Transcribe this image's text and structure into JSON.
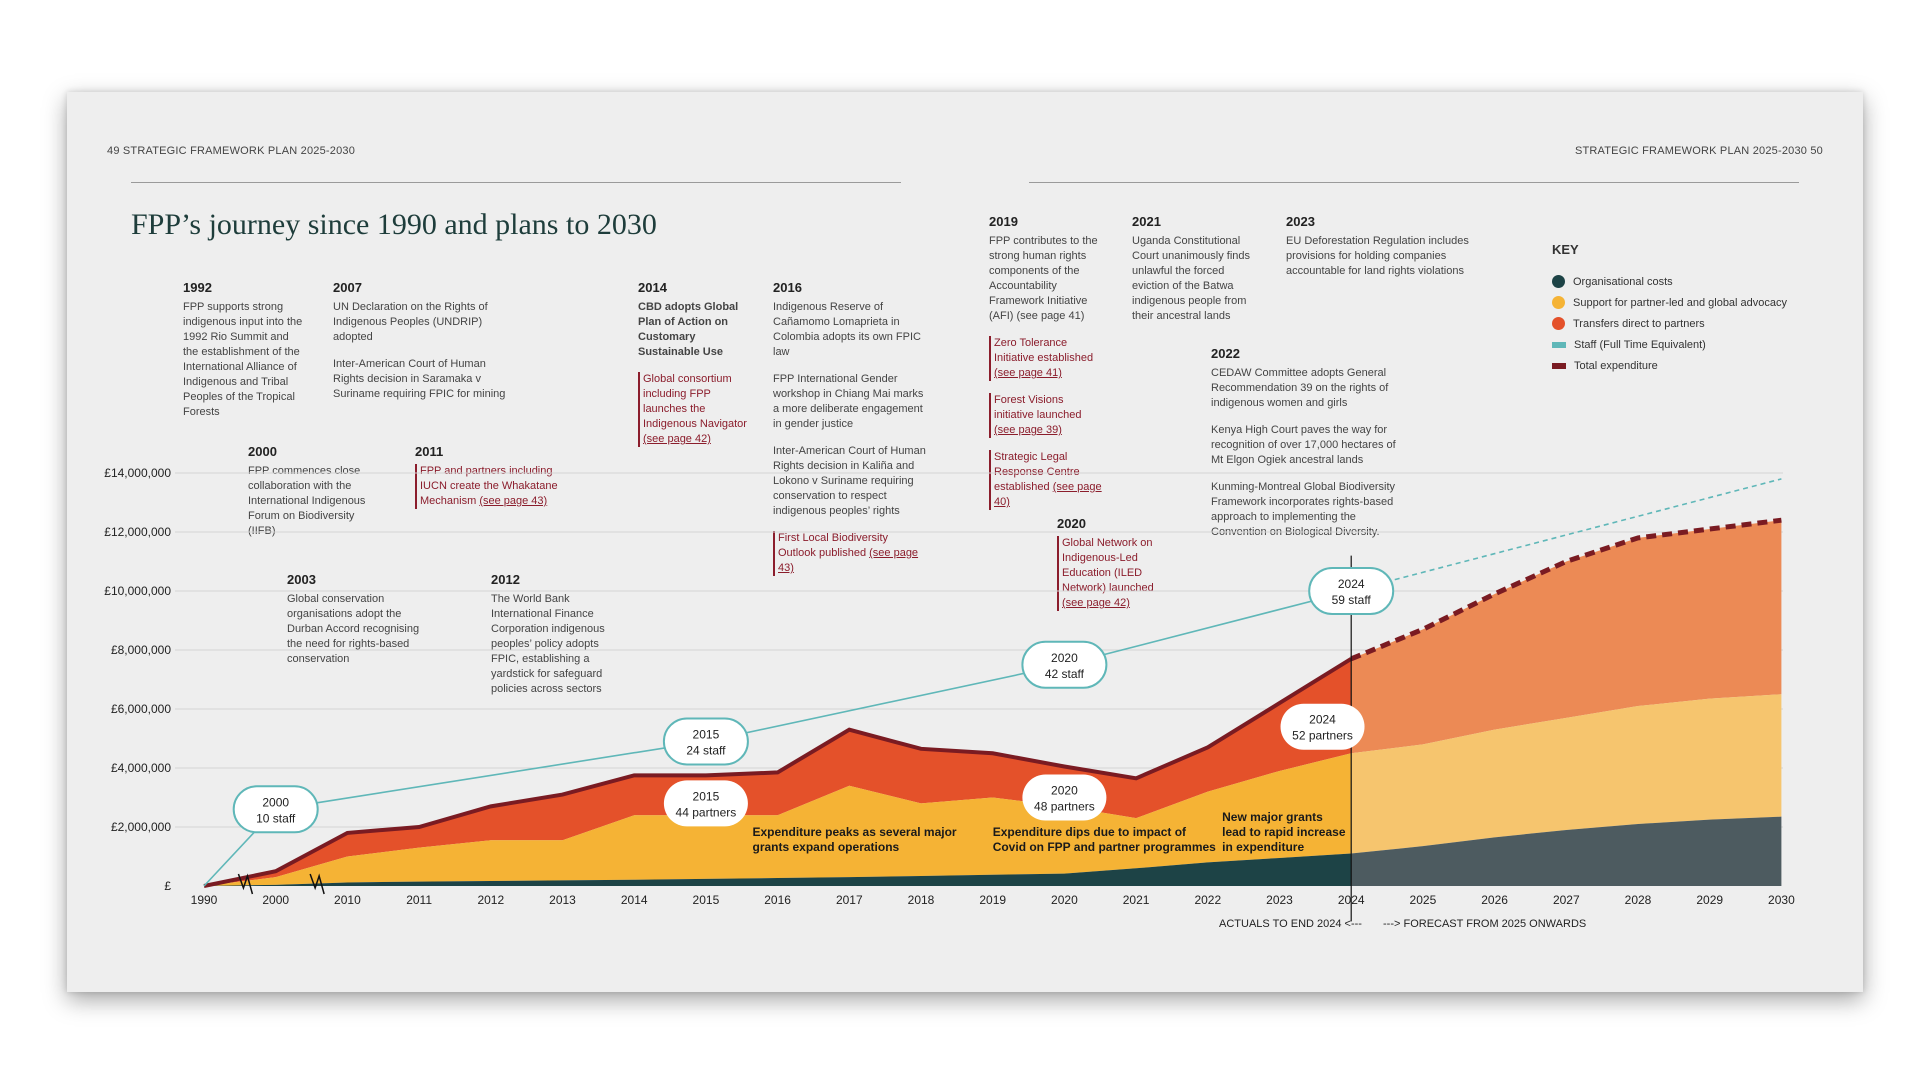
{
  "header": {
    "left": "49   STRATEGIC FRAMEWORK PLAN 2025-2030",
    "right": "STRATEGIC FRAMEWORK PLAN 2025-2030   50"
  },
  "title": "FPP’s journey since 1990 and plans to 2030",
  "key": {
    "heading": "KEY",
    "items": [
      {
        "label": "Organisational costs",
        "color": "#1d4346"
      },
      {
        "label": "Support for partner-led and global advocacy",
        "color": "#f5b335"
      },
      {
        "label": "Transfers direct to partners",
        "color": "#e4512a"
      },
      {
        "label": "Staff (Full Time Equivalent)",
        "color": "#5fb7b8"
      },
      {
        "label": "Total expenditure",
        "color": "#7a1b22"
      }
    ]
  },
  "notes": {
    "y1992": {
      "year": "1992",
      "text": "FPP supports strong indigenous input into the 1992 Rio Summit and the establishment of the International Alliance of Indigenous and Tribal Peoples of the Tropical Forests"
    },
    "y2007": {
      "year": "2007",
      "p1": "UN Declaration on the Rights of Indigenous Peoples (UNDRIP) adopted",
      "p2": "Inter-American Court of Human Rights decision in Saramaka v Suriname requiring FPIC for mining"
    },
    "y2000": {
      "year": "2000",
      "text": "FPP commences close collaboration with the International Indigenous Forum on Biodiversity (IIFB)"
    },
    "y2011": {
      "year": "2011",
      "text": "FPP and partners including IUCN create the Whakatane Mechanism",
      "link": "(see page 43)"
    },
    "y2003": {
      "year": "2003",
      "text": "Global conservation organisations adopt the Durban Accord recognising the need for rights-based conservation"
    },
    "y2012": {
      "year": "2012",
      "text": "The World Bank International Finance Corporation indigenous peoples’ policy adopts FPIC, establishing a yardstick for safeguard policies across sectors"
    },
    "y2014": {
      "year": "2014",
      "p1": "CBD adopts Global Plan of Action on Customary Sustainable Use",
      "p2": "Global consortium including FPP launches the Indigenous Navigator",
      "link": "(see page 42)"
    },
    "y2016": {
      "year": "2016",
      "p1": "Indigenous Reserve of Cañamomo Lomaprieta in Colombia adopts its own FPIC law",
      "p2": "FPP International Gender workshop in Chiang Mai marks a more deliberate engagement in gender justice",
      "p3": "Inter-American Court of Human Rights decision in Kaliña and Lokono v Suriname requiring conservation to respect indigenous peoples’ rights",
      "p4": "First Local Biodiversity Outlook published",
      "link": "(see page 43)"
    },
    "y2019": {
      "year": "2019",
      "p1": "FPP contributes to the strong human rights components of the Accountability Framework Initiative (AFI) (see page 41)",
      "p2": "Zero Tolerance Initiative established",
      "link2": "(see page 41)",
      "p3": "Forest Visions initiative launched",
      "link3": "(see page 39)",
      "p4": "Strategic Legal Response Centre established",
      "link4": "(see page 40)"
    },
    "y2021": {
      "year": "2021",
      "text": "Uganda Constitutional Court unanimously finds unlawful the forced eviction of the Batwa indigenous people from their ancestral lands"
    },
    "y2023": {
      "year": "2023",
      "text": "EU Deforestation Regulation includes provisions for holding companies accountable for land rights violations"
    },
    "y2022": {
      "year": "2022",
      "p1": "CEDAW Committee adopts General Recommendation 39 on the rights of indigenous women and girls",
      "p2": "Kenya High Court paves the way for recognition of over 17,000 hectares of Mt Elgon Ogiek ancestral lands",
      "p3": "Kunming-Montreal Global Biodiversity Framework incorporates rights-based approach to implementing the Convention on Biological Diversity."
    },
    "y2020": {
      "year": "2020",
      "text": "Global Network on Indigenous-Led Education (ILED Network) launched",
      "link": "(see page 42)"
    }
  },
  "chart_data": {
    "type": "area",
    "title": "FPP’s journey since 1990 and plans to 2030",
    "x_ticks": [
      "1990",
      "2000",
      "2010",
      "2011",
      "2012",
      "2013",
      "2014",
      "2015",
      "2016",
      "2017",
      "2018",
      "2019",
      "2020",
      "2021",
      "2022",
      "2023",
      "2024",
      "2025",
      "2026",
      "2027",
      "2028",
      "2029",
      "2030"
    ],
    "y_ticks": [
      "£",
      "£2,000,000",
      "£4,000,000",
      "£6,000,000",
      "£8,000,000",
      "£10,000,000",
      "£12,000,000",
      "£14,000,000"
    ],
    "ylim": [
      0,
      14000000
    ],
    "axis_break": true,
    "series": [
      {
        "name": "Organisational costs",
        "color": "#1d4346",
        "values": [
          0,
          40000,
          120000,
          150000,
          170000,
          190000,
          210000,
          240000,
          270000,
          300000,
          340000,
          380000,
          420000,
          600000,
          800000,
          950000,
          1100000,
          1350000,
          1650000,
          1900000,
          2100000,
          2250000,
          2350000
        ]
      },
      {
        "name": "Support for partner-led and global advocacy",
        "color": "#f5b335",
        "values": [
          0,
          300000,
          1000000,
          1300000,
          1550000,
          1550000,
          2400000,
          2400000,
          2400000,
          3400000,
          2800000,
          3000000,
          2700000,
          2300000,
          3200000,
          3900000,
          4500000,
          4800000,
          5300000,
          5700000,
          6100000,
          6350000,
          6500000
        ]
      },
      {
        "name": "Transfers direct to partners",
        "color": "#e4512a",
        "values": [
          0,
          500000,
          1800000,
          2000000,
          2700000,
          3100000,
          3750000,
          3750000,
          3850000,
          5300000,
          4650000,
          4500000,
          4050000,
          3650000,
          4700000,
          6200000,
          7700000,
          8700000,
          9900000,
          11000000,
          11800000,
          12100000,
          12400000
        ]
      },
      {
        "name": "Total expenditure",
        "color": "#7a1b22",
        "values": [
          0,
          500000,
          1800000,
          2000000,
          2700000,
          3100000,
          3750000,
          3750000,
          3850000,
          5300000,
          4650000,
          4500000,
          4050000,
          3650000,
          4700000,
          6200000,
          7700000,
          8700000,
          9900000,
          11000000,
          11800000,
          12100000,
          12400000
        ]
      }
    ],
    "staff_line": {
      "name": "Staff (Full Time Equivalent)",
      "color": "#5fb7b8",
      "points": [
        {
          "year": "1990",
          "y": 0
        },
        {
          "year": "2000",
          "y": 2600000
        },
        {
          "year": "2015",
          "y": 4900000
        },
        {
          "year": "2020",
          "y": 7500000
        },
        {
          "year": "2024",
          "y": 10000000
        },
        {
          "year": "2030",
          "y": 13800000
        }
      ]
    },
    "forecast_from_index": 16,
    "staff_bubbles": [
      {
        "year": "2000",
        "line2": "10 staff",
        "idx": 1,
        "y": 2600000
      },
      {
        "year": "2015",
        "line2": "24 staff",
        "idx": 7,
        "y": 4900000
      },
      {
        "year": "2020",
        "line2": "42 staff",
        "idx": 12,
        "y": 7500000
      },
      {
        "year": "2024",
        "line2": "59 staff",
        "idx": 16,
        "y": 10000000
      }
    ],
    "partner_bubbles": [
      {
        "year": "2015",
        "line2": "44 partners",
        "idx": 7,
        "y": 2800000
      },
      {
        "year": "2020",
        "line2": "48 partners",
        "idx": 12,
        "y": 3000000
      },
      {
        "year": "2024",
        "line2": "52 partners",
        "idx": 15.6,
        "y": 5400000
      }
    ],
    "annotations": [
      {
        "line1": "Expenditure peaks as several major",
        "line2": "grants expand operations",
        "idx": 7.65,
        "y": 1700000
      },
      {
        "line1": "Expenditure dips due to impact of",
        "line2": "Covid on FPP and partner programmes",
        "idx": 11.0,
        "y": 1700000
      },
      {
        "line1": "New major grants",
        "line2": "lead to rapid increase",
        "line3": "in expenditure",
        "idx": 14.2,
        "y": 2200000
      }
    ],
    "footer_left": "ACTUALS TO END 2024 <---",
    "footer_right": "---> FORECAST FROM 2025 ONWARDS"
  }
}
